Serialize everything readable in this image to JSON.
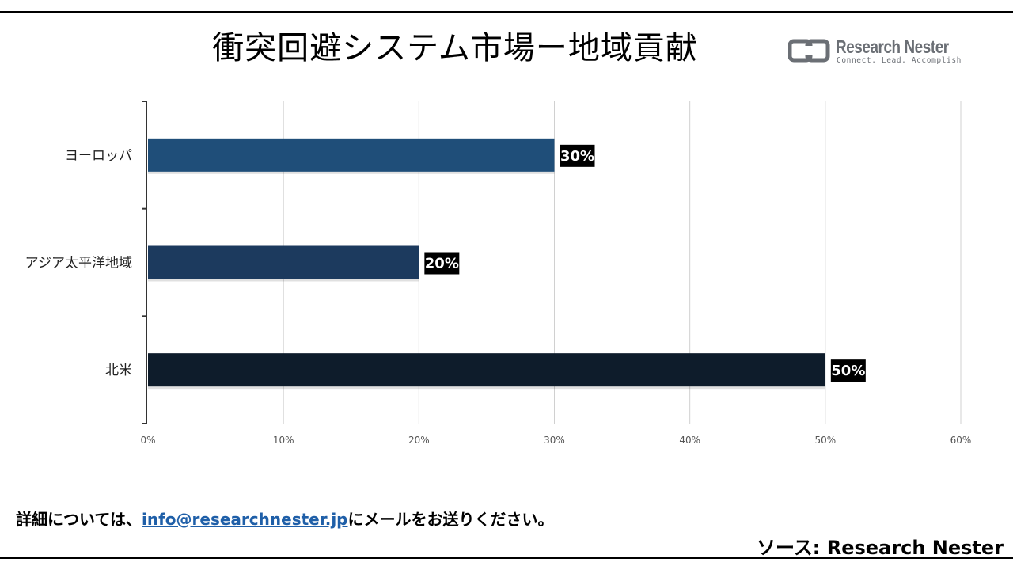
{
  "title": "衝突回避システム市場ー地域貢献",
  "logo": {
    "name": "Research Nester",
    "tagline": "Connect. Lead. Accomplish"
  },
  "footer": {
    "contact_prefix": "詳細については、",
    "contact_email": "info@researchnester.jp",
    "contact_suffix": "にメールをお送りください。",
    "source": "ソース: Research Nester"
  },
  "chart_data": {
    "type": "bar",
    "orientation": "horizontal",
    "categories": [
      "ヨーロッパ",
      "アジア太平洋地域",
      "北米"
    ],
    "values": [
      30,
      20,
      50
    ],
    "data_labels": [
      "30%",
      "20%",
      "50%"
    ],
    "bar_colors": [
      "#1f4e79",
      "#1c3a5e",
      "#0e1c2b"
    ],
    "xlim": [
      0,
      60
    ],
    "x_ticks": [
      0,
      10,
      20,
      30,
      40,
      50,
      60
    ],
    "x_tick_labels": [
      "0%",
      "10%",
      "20%",
      "30%",
      "40%",
      "50%",
      "60%"
    ],
    "grid": "vertical",
    "legend": "none",
    "title": "衝突回避システム市場ー地域貢献"
  }
}
